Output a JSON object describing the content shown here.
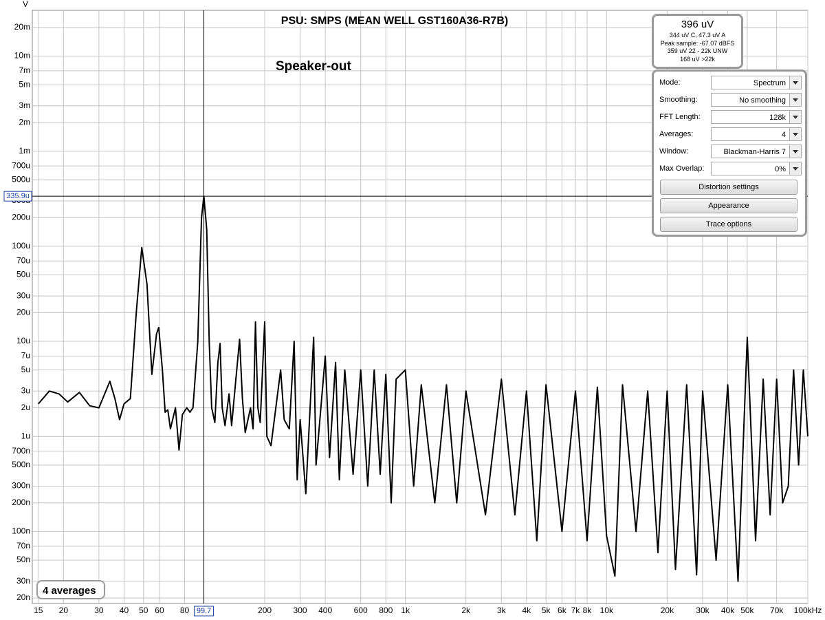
{
  "chart_data": {
    "type": "line",
    "title": "PSU: SMPS (MEAN WELL GST160A36-R7B)",
    "annotation": "Speaker-out",
    "y_unit": "V",
    "log_x": true,
    "log_y": true,
    "grid": true,
    "color": "#000000",
    "xlim": [
      14,
      100000
    ],
    "ylim": [
      1.75e-08,
      0.0303
    ],
    "xticks": [
      15,
      20,
      30,
      40,
      50,
      60,
      80,
      200,
      300,
      400,
      600,
      800,
      {
        "value": 1000,
        "label": "1k"
      },
      {
        "value": 2000,
        "label": "2k"
      },
      {
        "value": 3000,
        "label": "3k"
      },
      {
        "value": 4000,
        "label": "4k"
      },
      {
        "value": 5000,
        "label": "5k"
      },
      {
        "value": 6000,
        "label": "6k"
      },
      {
        "value": 7000,
        "label": "7k"
      },
      {
        "value": 8000,
        "label": "8k"
      },
      {
        "value": 10000,
        "label": "10k"
      },
      {
        "value": 20000,
        "label": "20k"
      },
      {
        "value": 30000,
        "label": "30k"
      },
      {
        "value": 40000,
        "label": "40k"
      },
      {
        "value": 50000,
        "label": "50k"
      },
      {
        "value": 70000,
        "label": "70k"
      },
      {
        "value": 100000,
        "label": "100kHz"
      }
    ],
    "yticks": [
      {
        "value": 0.02,
        "label": "20m"
      },
      {
        "value": 0.01,
        "label": "10m"
      },
      {
        "value": 0.007,
        "label": "7m"
      },
      {
        "value": 0.005,
        "label": "5m"
      },
      {
        "value": 0.003,
        "label": "3m"
      },
      {
        "value": 0.002,
        "label": "2m"
      },
      {
        "value": 0.001,
        "label": "1m"
      },
      {
        "value": 0.0007,
        "label": "700u"
      },
      {
        "value": 0.0005,
        "label": "500u"
      },
      {
        "value": 0.0003,
        "label": "300u"
      },
      {
        "value": 0.0002,
        "label": "200u"
      },
      {
        "value": 0.0001,
        "label": "100u"
      },
      {
        "value": 7e-05,
        "label": "70u"
      },
      {
        "value": 5e-05,
        "label": "50u"
      },
      {
        "value": 3e-05,
        "label": "30u"
      },
      {
        "value": 2e-05,
        "label": "20u"
      },
      {
        "value": 1e-05,
        "label": "10u"
      },
      {
        "value": 7e-06,
        "label": "7u"
      },
      {
        "value": 5e-06,
        "label": "5u"
      },
      {
        "value": 3e-06,
        "label": "3u"
      },
      {
        "value": 2e-06,
        "label": "2u"
      },
      {
        "value": 1e-06,
        "label": "1u"
      },
      {
        "value": 7e-07,
        "label": "700n"
      },
      {
        "value": 5e-07,
        "label": "500n"
      },
      {
        "value": 3e-07,
        "label": "300n"
      },
      {
        "value": 2e-07,
        "label": "200n"
      },
      {
        "value": 1e-07,
        "label": "100n"
      },
      {
        "value": 7e-08,
        "label": "70n"
      },
      {
        "value": 5e-08,
        "label": "50n"
      },
      {
        "value": 3e-08,
        "label": "30n"
      },
      {
        "value": 2e-08,
        "label": "20n"
      }
    ],
    "cursor": {
      "x": {
        "value": 99.7,
        "label": "99.7"
      },
      "y": {
        "value": 0.0003359,
        "label": "335.9u"
      }
    },
    "x": [
      15,
      17,
      19,
      21,
      24,
      27,
      30,
      34,
      36,
      38,
      40,
      43,
      46,
      49,
      52,
      55,
      58,
      59.5,
      62,
      64,
      66,
      68,
      72,
      75,
      78,
      82,
      85,
      88,
      93,
      97,
      99.7,
      103,
      106,
      109,
      113,
      117,
      120,
      123,
      127,
      133,
      137,
      142,
      150,
      155,
      160,
      170,
      175,
      180,
      185,
      190,
      200,
      205,
      215,
      240,
      250,
      265,
      280,
      290,
      300,
      320,
      350,
      360,
      400,
      420,
      450,
      470,
      500,
      550,
      600,
      650,
      700,
      750,
      800,
      850,
      900,
      1000,
      1100,
      1200,
      1400,
      1600,
      1800,
      2000,
      2500,
      3000,
      3500,
      4000,
      4500,
      5000,
      6000,
      7000,
      8000,
      9000,
      10000,
      11000,
      12000,
      14000,
      16000,
      18000,
      20000,
      22000,
      25000,
      28000,
      30000,
      35000,
      40000,
      45000,
      50000,
      55000,
      60000,
      65000,
      70000,
      75000,
      80000,
      85000,
      90000,
      95000,
      100000
    ],
    "values": [
      2.2e-06,
      3e-06,
      2.8e-06,
      2.3e-06,
      2.9e-06,
      2.1e-06,
      2e-06,
      3.8e-06,
      2.5e-06,
      1.5e-06,
      2.2e-06,
      2.5e-06,
      2e-05,
      9.7e-05,
      4e-05,
      4.5e-06,
      1.2e-05,
      1.4e-05,
      5e-06,
      1.8e-06,
      1.9e-06,
      1.2e-06,
      2e-06,
      7.2e-07,
      1.7e-06,
      2e-06,
      1.8e-06,
      2e-06,
      1e-05,
      0.0002,
      0.0003359,
      0.00015,
      1e-05,
      2e-06,
      1.4e-06,
      6e-06,
      9.5e-06,
      2e-06,
      1.3e-06,
      2.8e-06,
      1.3e-06,
      3e-06,
      1.05e-05,
      2.5e-06,
      1.1e-06,
      2e-06,
      1.2e-06,
      1.6e-05,
      2e-06,
      1.4e-06,
      1.6e-05,
      1e-06,
      8e-07,
      5e-06,
      1.5e-06,
      1.2e-06,
      1e-05,
      3.5e-07,
      1.5e-06,
      2.5e-07,
      1.1e-05,
      5e-07,
      7e-06,
      6e-07,
      6e-06,
      3.5e-07,
      5e-06,
      4e-07,
      5e-06,
      3e-07,
      5e-06,
      4e-07,
      4.5e-06,
      2e-07,
      4e-06,
      5e-06,
      3e-07,
      3.5e-06,
      2e-07,
      3.5e-06,
      2e-07,
      3e-06,
      1.5e-07,
      4e-06,
      1.5e-07,
      3e-06,
      8e-08,
      3.5e-06,
      1e-07,
      3e-06,
      8e-08,
      3.3e-06,
      9e-08,
      3.4e-08,
      3.5e-06,
      1e-07,
      3e-06,
      6e-08,
      3e-06,
      4e-08,
      3.5e-06,
      3.5e-08,
      3e-06,
      5e-08,
      3.5e-06,
      3e-08,
      1.1e-05,
      8e-08,
      4e-06,
      1.5e-07,
      4e-06,
      2e-07,
      3e-07,
      5e-06,
      5e-07,
      5e-06,
      1e-06
    ]
  },
  "meter": {
    "value": "396 uV",
    "lines": [
      "344 uV C, 47.3 uV A",
      "Peak sample: -67.07 dBFS",
      "359 uV 22 - 22k UNW",
      "168 uV >22k"
    ]
  },
  "controls": [
    {
      "label": "Mode:",
      "value": "Spectrum"
    },
    {
      "label": "Smoothing:",
      "value": "No  smoothing"
    },
    {
      "label": "FFT Length:",
      "value": "128k"
    },
    {
      "label": "Averages:",
      "value": "4"
    },
    {
      "label": "Window:",
      "value": "Blackman-Harris 7"
    },
    {
      "label": "Max Overlap:",
      "value": "0%"
    }
  ],
  "buttons": [
    "Distortion settings",
    "Appearance",
    "Trace options"
  ],
  "badge": "4 averages"
}
